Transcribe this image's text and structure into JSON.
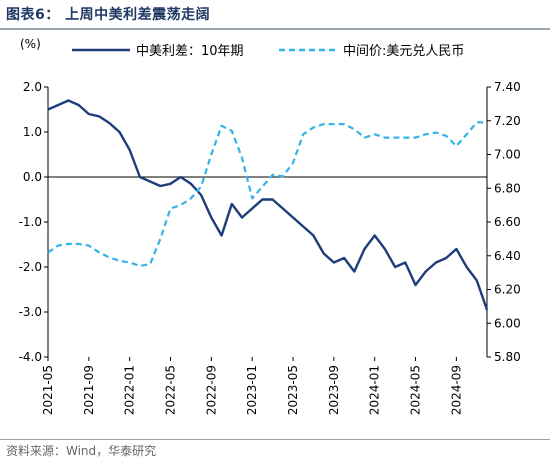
{
  "figure": {
    "title": "图表6：  上周中美利差震荡走阔",
    "source": "资料来源：Wind，华泰研究"
  },
  "colors": {
    "spread": "#1f3d7a",
    "cny": "#33b3e6",
    "axis": "#000000"
  },
  "chart_data": {
    "type": "line",
    "left_axis_unit": "(%)",
    "left_ylim": [
      -4.0,
      2.0
    ],
    "left_ticks": [
      "2.0",
      "1.0",
      "0.0",
      "-1.0",
      "-2.0",
      "-3.0",
      "-4.0"
    ],
    "right_ylim": [
      5.8,
      7.4
    ],
    "right_ticks": [
      "7.40",
      "7.20",
      "7.00",
      "6.80",
      "6.60",
      "6.40",
      "6.20",
      "6.00",
      "5.80"
    ],
    "x_tick_labels": [
      "2021-05",
      "2021-09",
      "2022-01",
      "2022-05",
      "2022-09",
      "2023-01",
      "2023-05",
      "2023-09",
      "2024-01",
      "2024-05",
      "2024-09"
    ],
    "x_range": [
      "2021-05",
      "2024-12"
    ],
    "legend_position": "top",
    "series": [
      {
        "name": "中美利差：10年期",
        "axis": "left",
        "style": "solid",
        "x": [
          "2021-05",
          "2021-06",
          "2021-07",
          "2021-08",
          "2021-09",
          "2021-10",
          "2021-11",
          "2021-12",
          "2022-01",
          "2022-02",
          "2022-03",
          "2022-04",
          "2022-05",
          "2022-06",
          "2022-07",
          "2022-08",
          "2022-09",
          "2022-10",
          "2022-11",
          "2022-12",
          "2023-01",
          "2023-02",
          "2023-03",
          "2023-04",
          "2023-05",
          "2023-06",
          "2023-07",
          "2023-08",
          "2023-09",
          "2023-10",
          "2023-11",
          "2023-12",
          "2024-01",
          "2024-02",
          "2024-03",
          "2024-04",
          "2024-05",
          "2024-06",
          "2024-07",
          "2024-08",
          "2024-09",
          "2024-10",
          "2024-11",
          "2024-12"
        ],
        "values": [
          1.5,
          1.6,
          1.7,
          1.6,
          1.4,
          1.35,
          1.2,
          1.0,
          0.6,
          0.0,
          -0.1,
          -0.2,
          -0.15,
          0.0,
          -0.15,
          -0.4,
          -0.9,
          -1.3,
          -0.6,
          -0.9,
          -0.7,
          -0.5,
          -0.5,
          -0.7,
          -0.9,
          -1.1,
          -1.3,
          -1.7,
          -1.9,
          -1.8,
          -2.1,
          -1.6,
          -1.3,
          -1.6,
          -2.0,
          -1.9,
          -2.4,
          -2.1,
          -1.9,
          -1.8,
          -1.6,
          -2.0,
          -2.3,
          -2.95
        ]
      },
      {
        "name": "中间价:美元兑人民币",
        "axis": "right",
        "style": "dashed",
        "x": [
          "2021-05",
          "2021-06",
          "2021-07",
          "2021-08",
          "2021-09",
          "2021-10",
          "2021-11",
          "2021-12",
          "2022-01",
          "2022-02",
          "2022-03",
          "2022-04",
          "2022-05",
          "2022-06",
          "2022-07",
          "2022-08",
          "2022-09",
          "2022-10",
          "2022-11",
          "2022-12",
          "2023-01",
          "2023-02",
          "2023-03",
          "2023-04",
          "2023-05",
          "2023-06",
          "2023-07",
          "2023-08",
          "2023-09",
          "2023-10",
          "2023-11",
          "2023-12",
          "2024-01",
          "2024-02",
          "2024-03",
          "2024-04",
          "2024-05",
          "2024-06",
          "2024-07",
          "2024-08",
          "2024-09",
          "2024-10",
          "2024-11",
          "2024-12"
        ],
        "values": [
          6.42,
          6.46,
          6.47,
          6.47,
          6.46,
          6.42,
          6.39,
          6.37,
          6.36,
          6.34,
          6.35,
          6.5,
          6.68,
          6.7,
          6.74,
          6.81,
          7.0,
          7.17,
          7.14,
          6.98,
          6.74,
          6.81,
          6.88,
          6.87,
          6.95,
          7.12,
          7.16,
          7.18,
          7.18,
          7.18,
          7.15,
          7.1,
          7.12,
          7.1,
          7.1,
          7.1,
          7.1,
          7.12,
          7.13,
          7.11,
          7.05,
          7.12,
          7.19,
          7.19
        ]
      }
    ]
  }
}
